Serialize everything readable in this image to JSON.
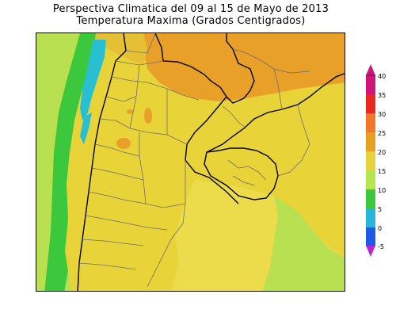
{
  "title": {
    "line1": "Perspectiva Climatica del 09 al 15 de Mayo de 2013",
    "line2": "Temperatura Maxima (Grados Centigrados)"
  },
  "colorbar": {
    "labels": [
      "40",
      "35",
      "30",
      "25",
      "20",
      "15",
      "10",
      "5",
      "0",
      "-5"
    ],
    "colors": [
      "#d0157a",
      "#e8281e",
      "#f07828",
      "#e8a020",
      "#e6d23c",
      "#b4e650",
      "#3cc83c",
      "#28b4dc",
      "#1e5ae6",
      "#7828c8",
      "#b428d2"
    ]
  },
  "map": {
    "colors": {
      "yellow": "#e8d438",
      "light_yellow": "#ecdc4c",
      "orange": "#e8a028",
      "light_green": "#b8e050",
      "green": "#3cc83c",
      "cyan": "#28c0d0",
      "borders": "#6e6e6e",
      "country_borders": "#000000"
    }
  }
}
